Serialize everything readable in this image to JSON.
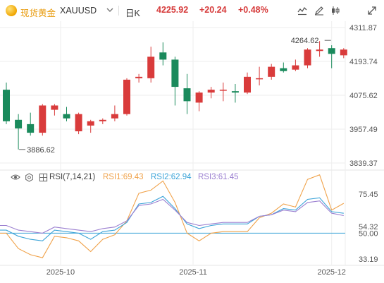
{
  "header": {
    "symbol_name": "现货黄金",
    "symbol_code": "XAUUSD",
    "timeframe": "日K",
    "price": "4225.92",
    "change": "+20.24",
    "change_pct": "+0.48%",
    "icons": [
      "gold-logo-icon",
      "chevron-down-icon",
      "line-style-icon",
      "draw-icon",
      "candle-type-icon",
      "expand-icon"
    ]
  },
  "colors": {
    "up": "#d93b3b",
    "down": "#1a8a5c",
    "rsi1": "#f0a24a",
    "rsi2": "#3aa3d8",
    "rsi3": "#9b7fd0",
    "level50": "#3aa3d8",
    "grid": "#eeeeee",
    "gold": "#e89b0c"
  },
  "rsi_legend": {
    "name": "RSI(7,14,21)",
    "rsi1": "RSI1:69.43",
    "rsi2": "RSI2:62.94",
    "rsi3": "RSI3:61.45"
  },
  "chart_data": [
    {
      "type": "candlestick",
      "title": "现货黄金 XAUUSD 日K",
      "price_axis_ticks": [
        "4311.87",
        "4193.74",
        "4075.62",
        "3957.49",
        "3839.37"
      ],
      "ylim": [
        3839.37,
        4311.87
      ],
      "x_ticks": [
        "2025-10",
        "2025-11",
        "2025-12"
      ],
      "x_tick_index": [
        4.5,
        15.5,
        27
      ],
      "annotations": [
        {
          "label": "4264.62",
          "value": 4264.62,
          "index": 27
        },
        {
          "label": "3886.62",
          "value": 3886.62,
          "index": 1
        }
      ],
      "candles": [
        {
          "o": 4095,
          "h": 4120,
          "l": 3975,
          "c": 3985
        },
        {
          "o": 3990,
          "h": 4010,
          "l": 3886.62,
          "c": 3960
        },
        {
          "o": 3975,
          "h": 4015,
          "l": 3935,
          "c": 3945
        },
        {
          "o": 3945,
          "h": 4045,
          "l": 3935,
          "c": 4040
        },
        {
          "o": 4025,
          "h": 4045,
          "l": 4005,
          "c": 4040
        },
        {
          "o": 4010,
          "h": 4035,
          "l": 3985,
          "c": 3995
        },
        {
          "o": 3950,
          "h": 4015,
          "l": 3940,
          "c": 4010
        },
        {
          "o": 3970,
          "h": 3990,
          "l": 3945,
          "c": 3985
        },
        {
          "o": 3985,
          "h": 3995,
          "l": 3975,
          "c": 3990
        },
        {
          "o": 3995,
          "h": 4040,
          "l": 3985,
          "c": 4010
        },
        {
          "o": 4010,
          "h": 4135,
          "l": 4005,
          "c": 4130
        },
        {
          "o": 4135,
          "h": 4150,
          "l": 4120,
          "c": 4140
        },
        {
          "o": 4135,
          "h": 4245,
          "l": 4120,
          "c": 4210
        },
        {
          "o": 4225,
          "h": 4260,
          "l": 4180,
          "c": 4200
        },
        {
          "o": 4200,
          "h": 4210,
          "l": 4040,
          "c": 4105
        },
        {
          "o": 4100,
          "h": 4150,
          "l": 4010,
          "c": 4055
        },
        {
          "o": 4050,
          "h": 4090,
          "l": 4020,
          "c": 4085
        },
        {
          "o": 4085,
          "h": 4105,
          "l": 4065,
          "c": 4095
        },
        {
          "o": 4095,
          "h": 4120,
          "l": 4055,
          "c": 4095
        },
        {
          "o": 4090,
          "h": 4115,
          "l": 4050,
          "c": 4085
        },
        {
          "o": 4085,
          "h": 4155,
          "l": 4080,
          "c": 4140
        },
        {
          "o": 4135,
          "h": 4175,
          "l": 4110,
          "c": 4135
        },
        {
          "o": 4140,
          "h": 4185,
          "l": 4130,
          "c": 4175
        },
        {
          "o": 4170,
          "h": 4190,
          "l": 4155,
          "c": 4160
        },
        {
          "o": 4165,
          "h": 4200,
          "l": 4160,
          "c": 4180
        },
        {
          "o": 4180,
          "h": 4240,
          "l": 4170,
          "c": 4235
        },
        {
          "o": 4230,
          "h": 4264.62,
          "l": 4210,
          "c": 4235
        },
        {
          "o": 4240,
          "h": 4250,
          "l": 4170,
          "c": 4220
        },
        {
          "o": 4215,
          "h": 4240,
          "l": 4205,
          "c": 4235
        }
      ]
    },
    {
      "type": "line",
      "title": "RSI(7,14,21)",
      "axis_ticks": [
        "75.45",
        "54.32",
        "50.00",
        "33.19"
      ],
      "ylim": [
        28,
        88
      ],
      "reference_line": 50,
      "series": [
        {
          "name": "RSI1",
          "values": [
            50,
            40,
            36,
            34,
            48,
            47,
            45,
            38,
            46,
            49,
            58,
            76,
            78,
            84,
            70,
            50,
            45,
            50,
            51,
            51,
            51,
            60,
            63,
            69,
            67,
            85,
            88,
            65,
            69.43
          ]
        },
        {
          "name": "RSI2",
          "values": [
            52,
            48,
            46,
            45,
            52,
            51,
            50,
            46,
            51,
            52,
            57,
            69,
            70,
            74,
            66,
            56,
            53,
            55,
            56,
            56,
            56,
            61,
            62,
            66,
            65,
            72,
            73,
            64,
            62.94
          ]
        },
        {
          "name": "RSI3",
          "values": [
            55,
            52,
            51,
            50,
            54,
            53,
            52,
            51,
            53,
            54,
            58,
            68,
            69,
            72,
            65,
            57,
            55,
            56,
            57,
            57,
            57,
            61,
            62,
            65,
            64,
            70,
            71,
            63,
            61.45
          ]
        }
      ]
    }
  ]
}
